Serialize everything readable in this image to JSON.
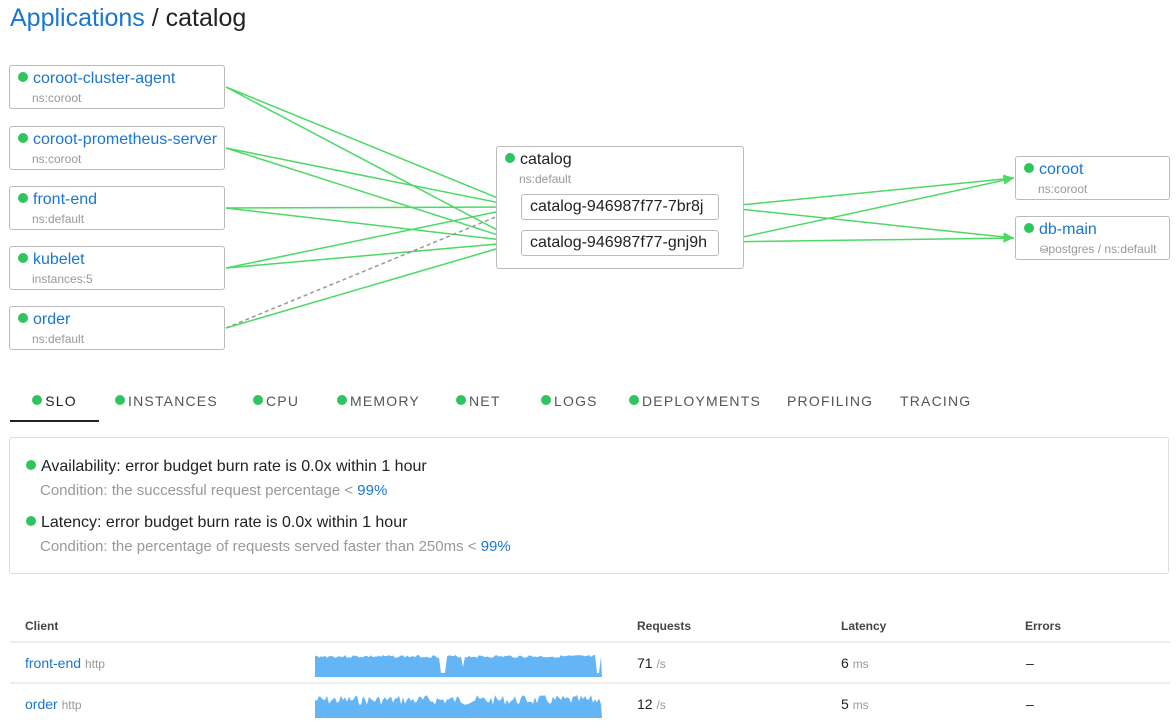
{
  "breadcrumb": {
    "root": "Applications",
    "separator": " / ",
    "current": "catalog"
  },
  "sources": [
    {
      "name": "coroot-cluster-agent",
      "sub": "ns:coroot"
    },
    {
      "name": "coroot-prometheus-server",
      "sub": "ns:coroot"
    },
    {
      "name": "front-end",
      "sub": "ns:default"
    },
    {
      "name": "kubelet",
      "sub": "instances:5"
    },
    {
      "name": "order",
      "sub": "ns:default"
    }
  ],
  "app": {
    "name": "catalog",
    "sub": "ns:default",
    "instances": [
      "catalog-946987f77-7br8j",
      "catalog-946987f77-gnj9h"
    ]
  },
  "targets": [
    {
      "name": "coroot",
      "sub": "ns:coroot"
    },
    {
      "name": "db-main",
      "sub": "postgres / ns:default",
      "icon": "database-icon"
    }
  ],
  "colors": {
    "ok": "#2ec55e",
    "link": "#1976d2",
    "edge": "#4cd964",
    "spark": "#64b5f6"
  },
  "tabs": [
    {
      "label": "SLO",
      "status": true,
      "active": true
    },
    {
      "label": "INSTANCES",
      "status": true
    },
    {
      "label": "CPU",
      "status": true
    },
    {
      "label": "MEMORY",
      "status": true
    },
    {
      "label": "NET",
      "status": true
    },
    {
      "label": "LOGS",
      "status": true
    },
    {
      "label": "DEPLOYMENTS",
      "status": true
    },
    {
      "label": "PROFILING",
      "status": false
    },
    {
      "label": "TRACING",
      "status": false
    }
  ],
  "slo": [
    {
      "text": "Availability: error budget burn rate is 0.0x within 1 hour",
      "condition": "Condition: the successful request percentage < ",
      "target": "99%"
    },
    {
      "text": "Latency: error budget burn rate is 0.0x within 1 hour",
      "condition": "Condition: the percentage of requests served faster than 250ms < ",
      "target": "99%"
    }
  ],
  "table": {
    "headers": {
      "client": "Client",
      "requests": "Requests",
      "latency": "Latency",
      "errors": "Errors"
    },
    "rows": [
      {
        "client": "front-end",
        "proto": "http",
        "requests": "71",
        "req_unit": "/s",
        "latency": "6",
        "lat_unit": "ms",
        "errors": "–"
      },
      {
        "client": "order",
        "proto": "http",
        "requests": "12",
        "req_unit": "/s",
        "latency": "5",
        "lat_unit": "ms",
        "errors": "–"
      }
    ]
  }
}
